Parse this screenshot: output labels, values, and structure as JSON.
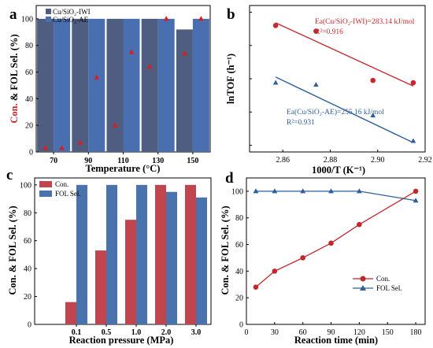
{
  "chart_data": [
    {
      "panel": "a",
      "type": "bar",
      "categories": [
        "70",
        "90",
        "110",
        "130",
        "150"
      ],
      "xlabel": "Temperature (°C)",
      "ylabel_parts": [
        "Con.",
        " & ",
        "FOL Sel. (%)"
      ],
      "ylim": [
        0,
        110
      ],
      "yticks": [
        0,
        20,
        40,
        60,
        80,
        100
      ],
      "legend_position": "top-left",
      "series": [
        {
          "name": "Cu/SiO₂-IWI",
          "color": "#4e5d80",
          "selectivity": [
            100,
            100,
            100,
            100,
            92
          ],
          "conversion": [
            3,
            7,
            20,
            64,
            74
          ]
        },
        {
          "name": "Cu/SiO₂-AE",
          "color": "#4a6fb0",
          "selectivity": [
            100,
            100,
            100,
            100,
            100
          ],
          "conversion": [
            3,
            56,
            75,
            100,
            100
          ]
        }
      ],
      "marker_color": "#d42020",
      "ylabel_red_color": "#c8282d"
    },
    {
      "panel": "b",
      "type": "scatter",
      "xlabel": "1000/T (K⁻¹)",
      "ylabel": "lnTOF (h⁻¹)",
      "xlim": [
        2.846,
        2.92
      ],
      "ylim": [
        0.8,
        5.2
      ],
      "xticks": [
        "2.86",
        "2.88",
        "2.90",
        "2.92"
      ],
      "series": [
        {
          "name": "Cu/SiO₂-IWI",
          "marker": "circle",
          "color": "#c8282d",
          "x": [
            2.857,
            2.874,
            2.898,
            2.915
          ],
          "y": [
            4.6,
            4.43,
            2.95,
            2.88
          ],
          "fit": [
            [
              2.857,
              4.68
            ],
            [
              2.915,
              2.78
            ]
          ]
        },
        {
          "name": "Cu/SiO₂-AE",
          "marker": "triangle",
          "color": "#2f5f9a",
          "x": [
            2.857,
            2.874,
            2.898,
            2.915
          ],
          "y": [
            2.88,
            2.82,
            1.9,
            1.13
          ],
          "fit": [
            [
              2.857,
              3.05
            ],
            [
              2.915,
              1.08
            ]
          ]
        }
      ],
      "annotations": [
        {
          "lines": [
            "Ea(Cu/SiO₂-IWI)=283.14 kJ/mol",
            "R²=0.916"
          ],
          "color": "#c8282d"
        },
        {
          "lines": [
            "Ea(Cu/SiO₂-AE)=255.16 kJ/mol",
            "R²=0.931"
          ],
          "color": "#2f5f9a"
        }
      ]
    },
    {
      "panel": "c",
      "type": "bar",
      "categories": [
        "0.1",
        "0.5",
        "1.0",
        "2.0",
        "3.0"
      ],
      "xlabel": "Reaction pressure (MPa)",
      "ylabel": "Con. & FOL Sel. (%)",
      "ylim": [
        0,
        105
      ],
      "yticks": [
        0,
        20,
        40,
        60,
        80,
        100
      ],
      "legend_position": "top-left",
      "series": [
        {
          "name": "Con.",
          "color": "#c0454f",
          "values": [
            16,
            53,
            75,
            100,
            100
          ]
        },
        {
          "name": "FOL Sel.",
          "color": "#4a72ad",
          "values": [
            100,
            100,
            100,
            95,
            91
          ]
        }
      ]
    },
    {
      "panel": "d",
      "type": "line",
      "xlabel": "Reaction time (min)",
      "ylabel": "Con. & FOL Sel. (%)",
      "xlim": [
        0,
        190
      ],
      "ylim": [
        0,
        110
      ],
      "xticks": [
        0,
        30,
        60,
        90,
        120,
        150,
        180
      ],
      "yticks": [
        0,
        20,
        40,
        60,
        80,
        100
      ],
      "legend_position": "bottom-right",
      "series": [
        {
          "name": "Con.",
          "marker": "circle",
          "color": "#c0282d",
          "x": [
            10,
            30,
            60,
            90,
            120,
            180
          ],
          "y": [
            28,
            40,
            50,
            61,
            75,
            100
          ]
        },
        {
          "name": "FOL Sel.",
          "marker": "triangle",
          "color": "#2f5f9a",
          "x": [
            10,
            30,
            60,
            90,
            120,
            180
          ],
          "y": [
            100,
            100,
            100,
            100,
            100,
            93
          ]
        }
      ]
    }
  ]
}
